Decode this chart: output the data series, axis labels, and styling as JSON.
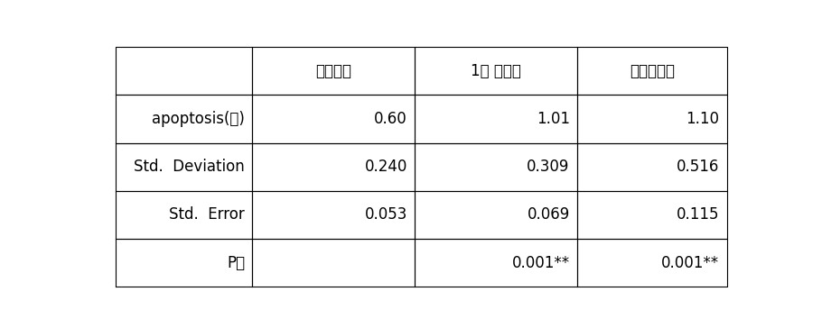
{
  "col_headers": [
    "비노출군",
    "1주 노출군",
    "지속노출군"
  ],
  "row_headers": [
    "apoptosis(개)",
    "Std.  Deviation",
    "Std.  Error",
    "P값"
  ],
  "data": [
    [
      "0.60",
      "1.01",
      "1.10"
    ],
    [
      "0.240",
      "0.309",
      "0.516"
    ],
    [
      "0.053",
      "0.069",
      "0.115"
    ],
    [
      "",
      "0.001**",
      "0.001**"
    ]
  ],
  "bg_color": "#ffffff",
  "text_color": "#000000",
  "border_color": "#000000",
  "font_size": 12,
  "header_font_size": 12
}
